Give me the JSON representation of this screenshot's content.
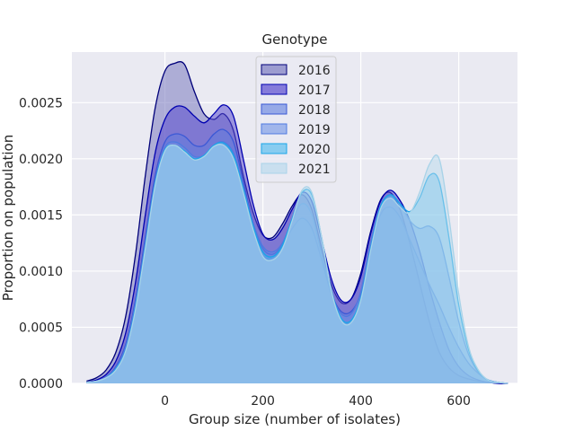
{
  "chart_data": {
    "type": "area",
    "title": "Genotype",
    "xlabel": "Group size (number of isolates)",
    "ylabel": "Proportion on population",
    "xlim": [
      -190,
      720
    ],
    "ylim": [
      0,
      0.00295
    ],
    "xticks": [
      0,
      200,
      400,
      600
    ],
    "xtick_labels": [
      "0",
      "200",
      "400",
      "600"
    ],
    "yticks": [
      0,
      0.0005,
      0.001,
      0.0015,
      0.002,
      0.0025
    ],
    "ytick_labels": [
      "0.0000",
      "0.0005",
      "0.0010",
      "0.0015",
      "0.0020",
      "0.0025"
    ],
    "grid": true,
    "legend_position": "top-center",
    "x": [
      -160,
      -140,
      -120,
      -100,
      -80,
      -60,
      -40,
      -20,
      0,
      20,
      40,
      60,
      80,
      100,
      120,
      140,
      160,
      180,
      200,
      220,
      240,
      260,
      280,
      300,
      320,
      340,
      360,
      380,
      400,
      420,
      440,
      460,
      480,
      500,
      520,
      540,
      560,
      580,
      600,
      620,
      640,
      660,
      680,
      700
    ],
    "series": [
      {
        "name": "2016",
        "fill": "#7a7ac0",
        "line": "#00007a",
        "opacity": 0.55,
        "values": [
          2e-05,
          5e-05,
          0.00012,
          0.00028,
          0.0006,
          0.00115,
          0.00185,
          0.00245,
          0.00278,
          0.00285,
          0.00284,
          0.0026,
          0.0024,
          0.00235,
          0.0024,
          0.00225,
          0.00185,
          0.00152,
          0.00132,
          0.0013,
          0.00142,
          0.00158,
          0.00168,
          0.00155,
          0.0012,
          0.00088,
          0.00072,
          0.00075,
          0.00098,
          0.00135,
          0.00163,
          0.0017,
          0.00155,
          0.00125,
          0.0009,
          0.00055,
          0.00028,
          0.00014,
          7e-05,
          4e-05,
          2e-05,
          1e-05,
          0.0,
          0.0
        ]
      },
      {
        "name": "2017",
        "fill": "#5a4ccf",
        "line": "#0000b0",
        "opacity": 0.55,
        "values": [
          1e-05,
          3e-05,
          8e-05,
          0.0002,
          0.00045,
          0.0009,
          0.0015,
          0.00205,
          0.00235,
          0.00246,
          0.00246,
          0.00238,
          0.00232,
          0.0024,
          0.00248,
          0.00238,
          0.002,
          0.0016,
          0.00133,
          0.00128,
          0.00138,
          0.00155,
          0.0017,
          0.00162,
          0.00128,
          0.00093,
          0.00074,
          0.00075,
          0.00095,
          0.00133,
          0.00162,
          0.00172,
          0.00163,
          0.00145,
          0.00118,
          0.00085,
          0.00055,
          0.0003,
          0.00015,
          7e-05,
          3e-05,
          1e-05,
          0.0,
          0.0
        ]
      },
      {
        "name": "2018",
        "fill": "#5d7de0",
        "line": "#3b59d6",
        "opacity": 0.45,
        "values": [
          1e-05,
          2e-05,
          6e-05,
          0.00015,
          0.00035,
          0.00075,
          0.0013,
          0.00185,
          0.00215,
          0.00222,
          0.0022,
          0.00212,
          0.00212,
          0.00222,
          0.00226,
          0.00215,
          0.0018,
          0.00143,
          0.0012,
          0.00115,
          0.00123,
          0.00138,
          0.00147,
          0.00138,
          0.0011,
          0.0008,
          0.00064,
          0.00064,
          0.0008,
          0.00118,
          0.0015,
          0.00157,
          0.00148,
          0.00128,
          0.00108,
          0.00088,
          0.0007,
          0.0005,
          0.00032,
          0.00018,
          9e-05,
          3e-05,
          1e-05,
          0.0
        ]
      },
      {
        "name": "2019",
        "fill": "#6f93e6",
        "line": "#4f7ae0",
        "opacity": 0.45,
        "values": [
          1e-05,
          2e-05,
          6e-05,
          0.00014,
          0.00033,
          0.00072,
          0.00125,
          0.0018,
          0.0021,
          0.00215,
          0.0021,
          0.00202,
          0.00203,
          0.00212,
          0.00215,
          0.00205,
          0.00175,
          0.00143,
          0.00122,
          0.00117,
          0.00125,
          0.00145,
          0.0016,
          0.0015,
          0.00115,
          0.0008,
          0.00062,
          0.00062,
          0.00082,
          0.00125,
          0.00158,
          0.00168,
          0.0016,
          0.00145,
          0.00138,
          0.0014,
          0.0013,
          0.00095,
          0.00055,
          0.00026,
          0.0001,
          3e-05,
          1e-05,
          0.0
        ]
      },
      {
        "name": "2020",
        "fill": "#46b8ef",
        "line": "#1aa6e8",
        "opacity": 0.45,
        "values": [
          1e-05,
          2e-05,
          5e-05,
          0.00013,
          0.0003,
          0.00068,
          0.00122,
          0.00178,
          0.00208,
          0.00212,
          0.00207,
          0.002,
          0.00203,
          0.00212,
          0.00214,
          0.00203,
          0.00173,
          0.0014,
          0.00117,
          0.00113,
          0.00123,
          0.00147,
          0.0017,
          0.00168,
          0.0013,
          0.00083,
          0.00058,
          0.00056,
          0.00076,
          0.0012,
          0.00157,
          0.00168,
          0.0016,
          0.00153,
          0.00165,
          0.00185,
          0.0018,
          0.0013,
          0.0007,
          0.0003,
          0.00011,
          3e-05,
          1e-05,
          0.0
        ]
      },
      {
        "name": "2021",
        "fill": "#b7d9ec",
        "line": "#a9d3e8",
        "opacity": 0.5,
        "values": [
          1e-05,
          2e-05,
          5e-05,
          0.00012,
          0.00029,
          0.00066,
          0.0012,
          0.00176,
          0.00207,
          0.00212,
          0.00206,
          0.00199,
          0.00202,
          0.00211,
          0.00212,
          0.002,
          0.0017,
          0.00137,
          0.00113,
          0.0011,
          0.0012,
          0.00145,
          0.00172,
          0.0017,
          0.0013,
          0.00082,
          0.00056,
          0.00054,
          0.00074,
          0.00118,
          0.00155,
          0.00165,
          0.00157,
          0.00152,
          0.0017,
          0.00195,
          0.002,
          0.00148,
          0.0008,
          0.00033,
          0.00012,
          3e-05,
          1e-05,
          0.0
        ]
      }
    ]
  }
}
